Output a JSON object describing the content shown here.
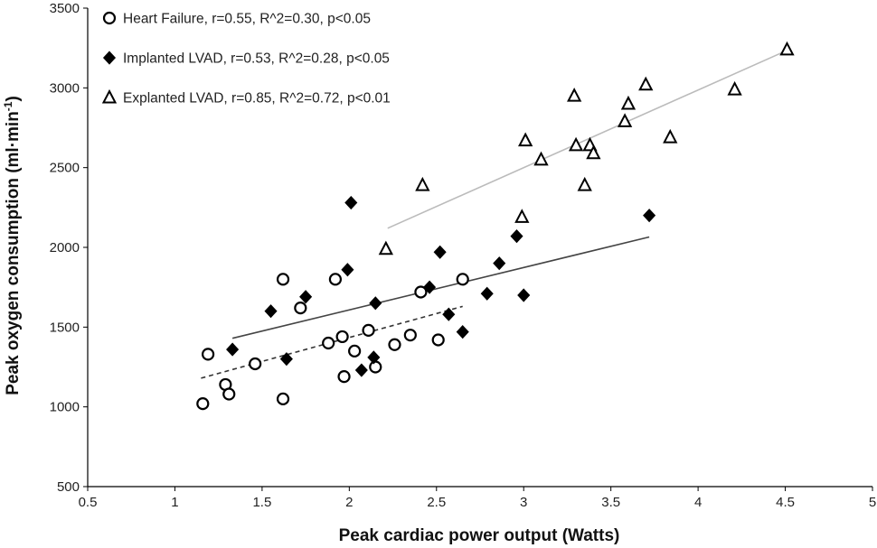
{
  "chart_data": {
    "type": "scatter",
    "xlabel": "Peak cardiac power output (Watts)",
    "ylabel": "Peak oxygen consumption (ml·min",
    "ylabel_sup": "-1",
    "ylabel_close": ")",
    "xlim": [
      0.5,
      5
    ],
    "ylim": [
      500,
      3500
    ],
    "xticks": [
      0.5,
      1,
      1.5,
      2,
      2.5,
      3,
      3.5,
      4,
      4.5,
      5
    ],
    "xtick_labels": [
      "0.5",
      "1",
      "1.5",
      "2",
      "2.5",
      "3",
      "3.5",
      "4",
      "4.5",
      "5"
    ],
    "yticks": [
      500,
      1000,
      1500,
      2000,
      2500,
      3000,
      3500
    ],
    "ytick_labels": [
      "500",
      "1000",
      "1500",
      "2000",
      "2500",
      "3000",
      "3500"
    ],
    "grid": false,
    "legend_position": "top-left",
    "series": [
      {
        "name": "Heart Failure, r=0.55, R^2=0.30, p<0.05",
        "marker": "open-circle",
        "line_style": "dashed",
        "line_color": "#333333",
        "fit": {
          "x": [
            1.15,
            2.65
          ],
          "y": [
            1180,
            1630
          ]
        },
        "points": [
          {
            "x": 1.16,
            "y": 1020
          },
          {
            "x": 1.19,
            "y": 1330
          },
          {
            "x": 1.29,
            "y": 1140
          },
          {
            "x": 1.31,
            "y": 1080
          },
          {
            "x": 1.46,
            "y": 1270
          },
          {
            "x": 1.62,
            "y": 1800
          },
          {
            "x": 1.62,
            "y": 1050
          },
          {
            "x": 1.72,
            "y": 1620
          },
          {
            "x": 1.88,
            "y": 1400
          },
          {
            "x": 1.92,
            "y": 1800
          },
          {
            "x": 1.96,
            "y": 1440
          },
          {
            "x": 1.97,
            "y": 1190
          },
          {
            "x": 2.03,
            "y": 1350
          },
          {
            "x": 2.11,
            "y": 1480
          },
          {
            "x": 2.15,
            "y": 1250
          },
          {
            "x": 2.26,
            "y": 1390
          },
          {
            "x": 2.35,
            "y": 1450
          },
          {
            "x": 2.41,
            "y": 1720
          },
          {
            "x": 2.51,
            "y": 1420
          },
          {
            "x": 2.65,
            "y": 1800
          }
        ]
      },
      {
        "name": "Implanted LVAD, r=0.53, R^2=0.28, p<0.05",
        "marker": "filled-diamond",
        "line_style": "solid",
        "line_color": "#444444",
        "fit": {
          "x": [
            1.33,
            3.72
          ],
          "y": [
            1430,
            2065
          ]
        },
        "points": [
          {
            "x": 1.33,
            "y": 1360
          },
          {
            "x": 1.55,
            "y": 1600
          },
          {
            "x": 1.64,
            "y": 1300
          },
          {
            "x": 1.75,
            "y": 1690
          },
          {
            "x": 1.99,
            "y": 1860
          },
          {
            "x": 2.01,
            "y": 2280
          },
          {
            "x": 2.07,
            "y": 1230
          },
          {
            "x": 2.14,
            "y": 1310
          },
          {
            "x": 2.15,
            "y": 1650
          },
          {
            "x": 2.46,
            "y": 1750
          },
          {
            "x": 2.52,
            "y": 1970
          },
          {
            "x": 2.57,
            "y": 1580
          },
          {
            "x": 2.65,
            "y": 1470
          },
          {
            "x": 2.79,
            "y": 1710
          },
          {
            "x": 2.86,
            "y": 1900
          },
          {
            "x": 2.96,
            "y": 2070
          },
          {
            "x": 3.0,
            "y": 1700
          },
          {
            "x": 3.72,
            "y": 2200
          }
        ]
      },
      {
        "name": "Explanted LVAD, r=0.85, R^2=0.72, p<0.01",
        "marker": "open-triangle",
        "line_style": "solid",
        "line_color": "#bbbbbb",
        "fit": {
          "x": [
            2.22,
            4.5
          ],
          "y": [
            2120,
            3230
          ]
        },
        "points": [
          {
            "x": 2.21,
            "y": 1990
          },
          {
            "x": 2.42,
            "y": 2390
          },
          {
            "x": 2.99,
            "y": 2190
          },
          {
            "x": 3.01,
            "y": 2670
          },
          {
            "x": 3.1,
            "y": 2550
          },
          {
            "x": 3.29,
            "y": 2950
          },
          {
            "x": 3.3,
            "y": 2640
          },
          {
            "x": 3.35,
            "y": 2390
          },
          {
            "x": 3.38,
            "y": 2640
          },
          {
            "x": 3.4,
            "y": 2590
          },
          {
            "x": 3.58,
            "y": 2790
          },
          {
            "x": 3.6,
            "y": 2900
          },
          {
            "x": 3.7,
            "y": 3020
          },
          {
            "x": 3.84,
            "y": 2690
          },
          {
            "x": 4.21,
            "y": 2990
          },
          {
            "x": 4.51,
            "y": 3240
          }
        ]
      }
    ]
  }
}
